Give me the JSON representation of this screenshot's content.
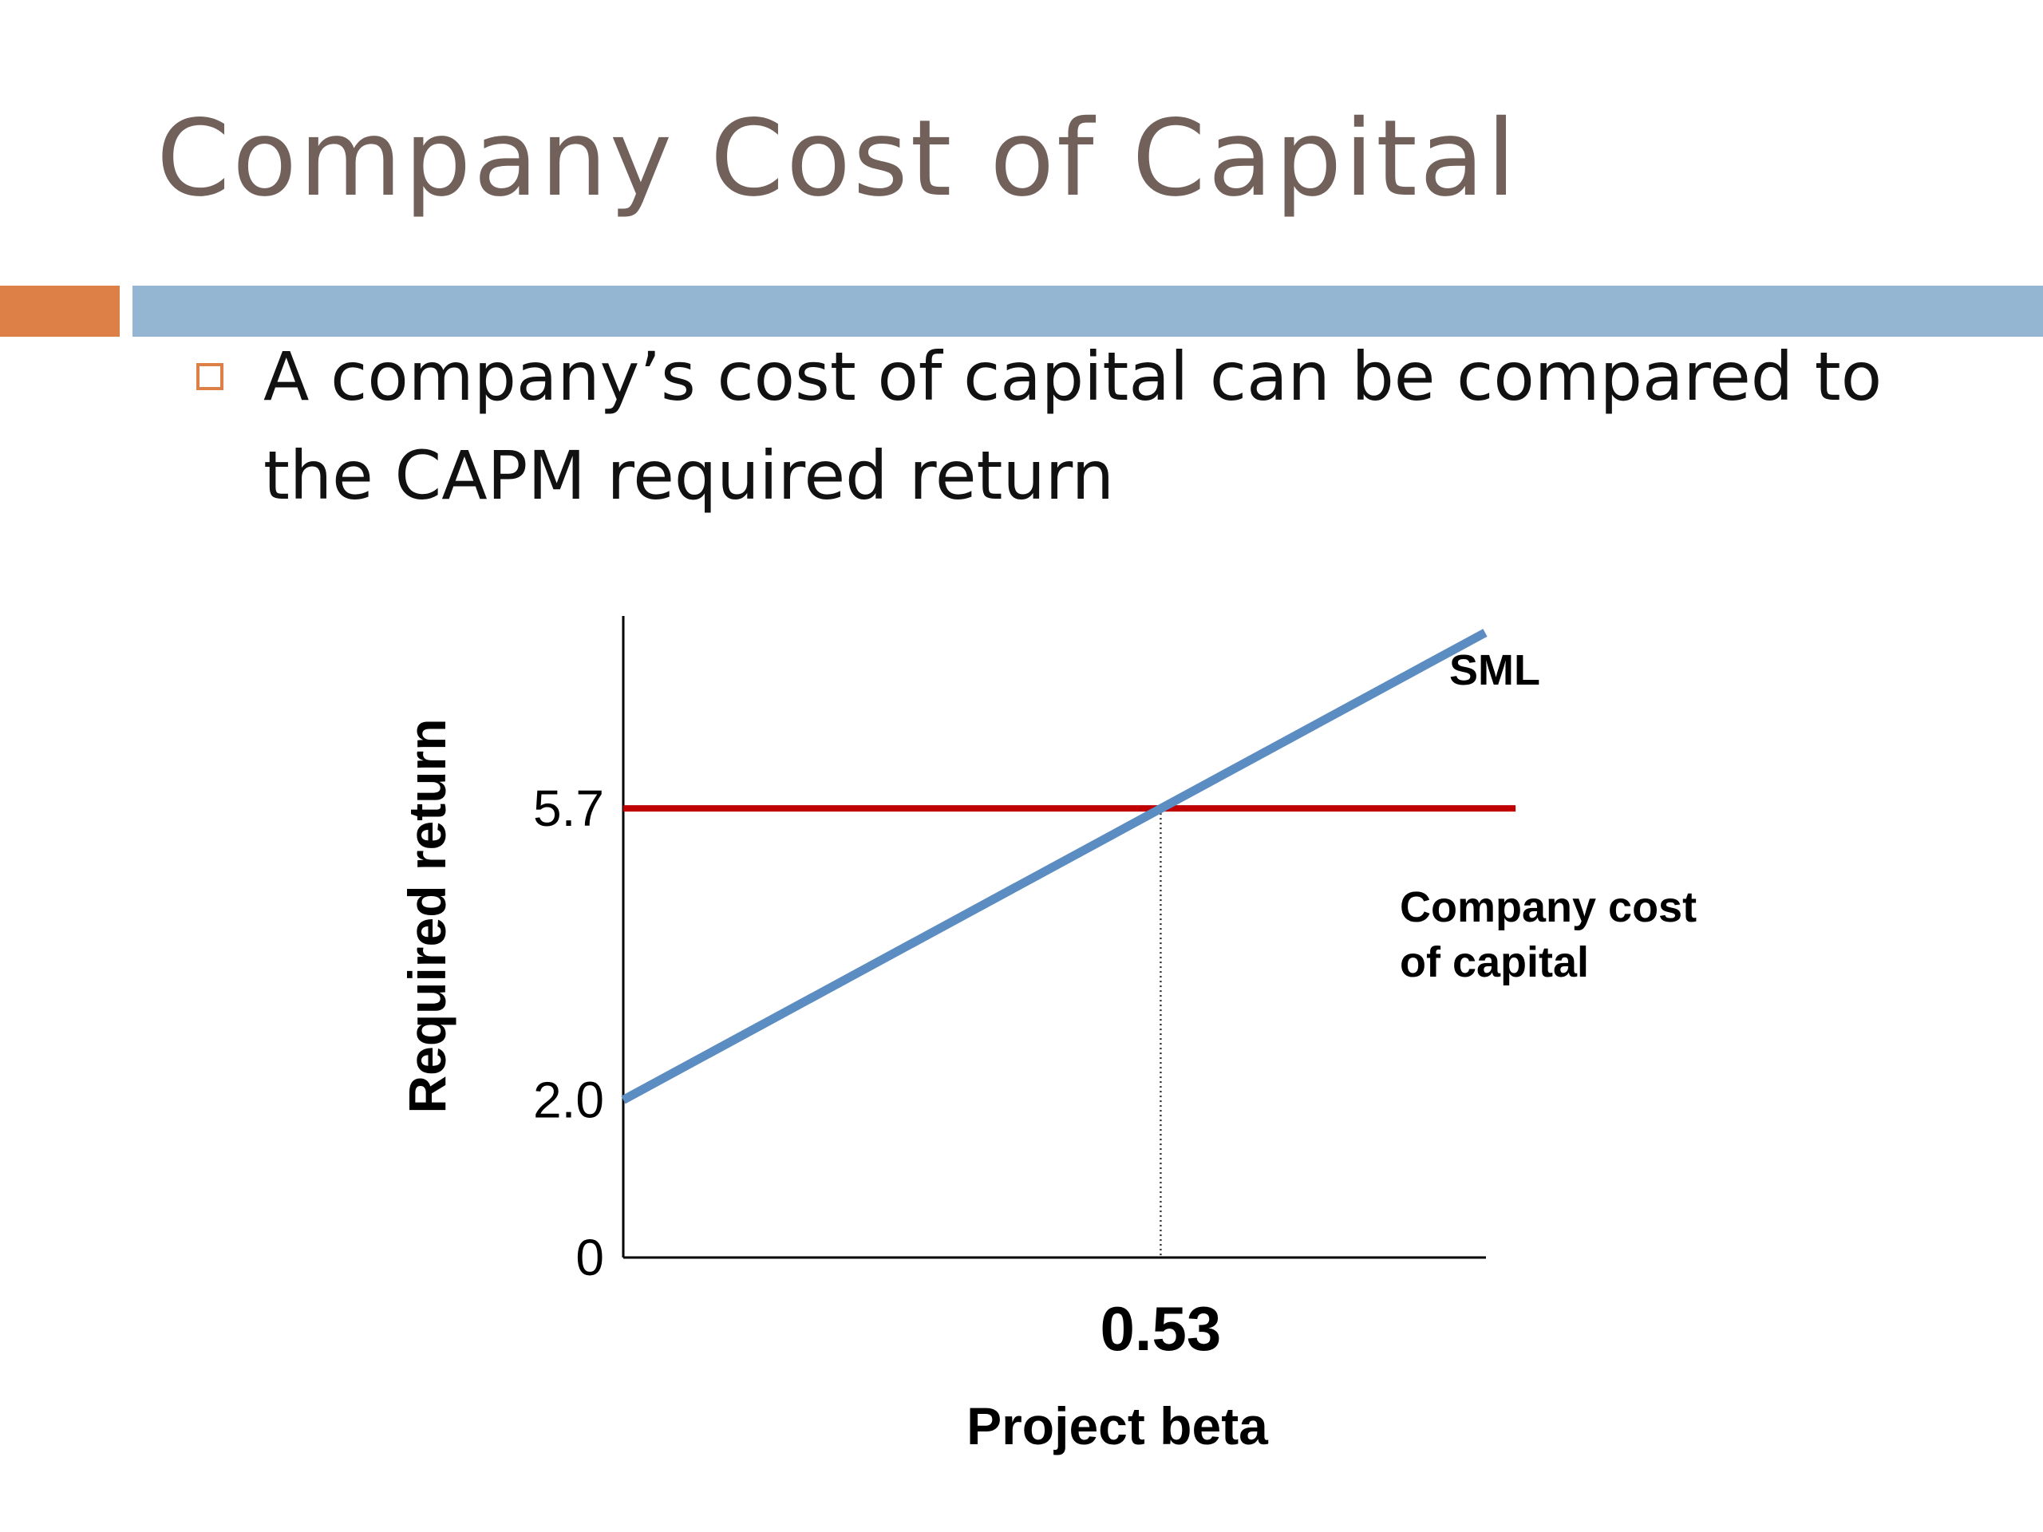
{
  "slide": {
    "title": "Company Cost of Capital",
    "bullet": "A company’s cost of capital can be compared to the CAPM required return",
    "colors": {
      "title": "#72615a",
      "accent_orange": "#dd8047",
      "accent_blue": "#94b6d2"
    }
  },
  "chart_data": {
    "type": "line",
    "xlabel": "Project beta",
    "ylabel": "Required return",
    "xlim": [
      0,
      0.85
    ],
    "ylim": [
      0,
      8.0
    ],
    "x_ticks": [
      0.53
    ],
    "x_tick_labels": [
      "0.53"
    ],
    "y_ticks": [
      0,
      2.0,
      5.7
    ],
    "y_tick_labels": [
      "0",
      "2.0",
      "5.7"
    ],
    "series": [
      {
        "name": "SML",
        "x": [
          0,
          0.85
        ],
        "y": [
          2.0,
          7.93
        ],
        "color": "#5b8cc2"
      },
      {
        "name": "Company cost of capital",
        "x": [
          0,
          0.88
        ],
        "y": [
          5.7,
          5.7
        ],
        "color": "#c00000"
      }
    ],
    "reference_lines": [
      {
        "type": "vertical",
        "x": 0.53,
        "y_from": 0,
        "y_to": 5.7,
        "style": "dotted"
      }
    ],
    "annotations": [
      {
        "text": "SML"
      },
      {
        "text": "Company cost of capital",
        "lines": [
          "Company cost",
          "of capital"
        ]
      }
    ],
    "grid": false,
    "legend": "none"
  }
}
